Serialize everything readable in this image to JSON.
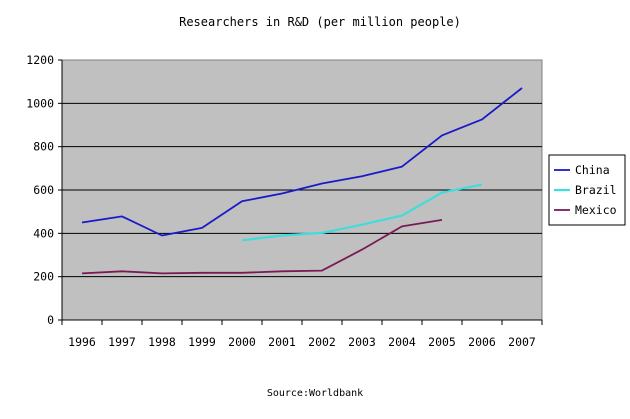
{
  "chart_data": {
    "type": "line",
    "title": "Researchers in R&D (per million people)",
    "xlabel": "",
    "ylabel": "",
    "categories": [
      "1996",
      "1997",
      "1998",
      "1999",
      "2000",
      "2001",
      "2002",
      "2003",
      "2004",
      "2005",
      "2006",
      "2007"
    ],
    "yticks": [
      "0",
      "200",
      "400",
      "600",
      "800",
      "1000",
      "1200"
    ],
    "ylim": [
      0,
      1200
    ],
    "grid": "horizontal",
    "legend_position": "right",
    "series": [
      {
        "name": "China",
        "color": "#1a1ac8",
        "values": [
          450,
          478,
          390,
          425,
          548,
          584,
          630,
          663,
          708,
          852,
          926,
          1071
        ]
      },
      {
        "name": "Brazil",
        "color": "#40dcdc",
        "values": [
          null,
          null,
          null,
          null,
          368,
          390,
          402,
          440,
          482,
          588,
          625,
          null
        ]
      },
      {
        "name": "Mexico",
        "color": "#7a1a55",
        "values": [
          215,
          225,
          215,
          218,
          218,
          225,
          228,
          325,
          432,
          462,
          null,
          null
        ]
      }
    ],
    "source": "Source:Worldbank"
  }
}
